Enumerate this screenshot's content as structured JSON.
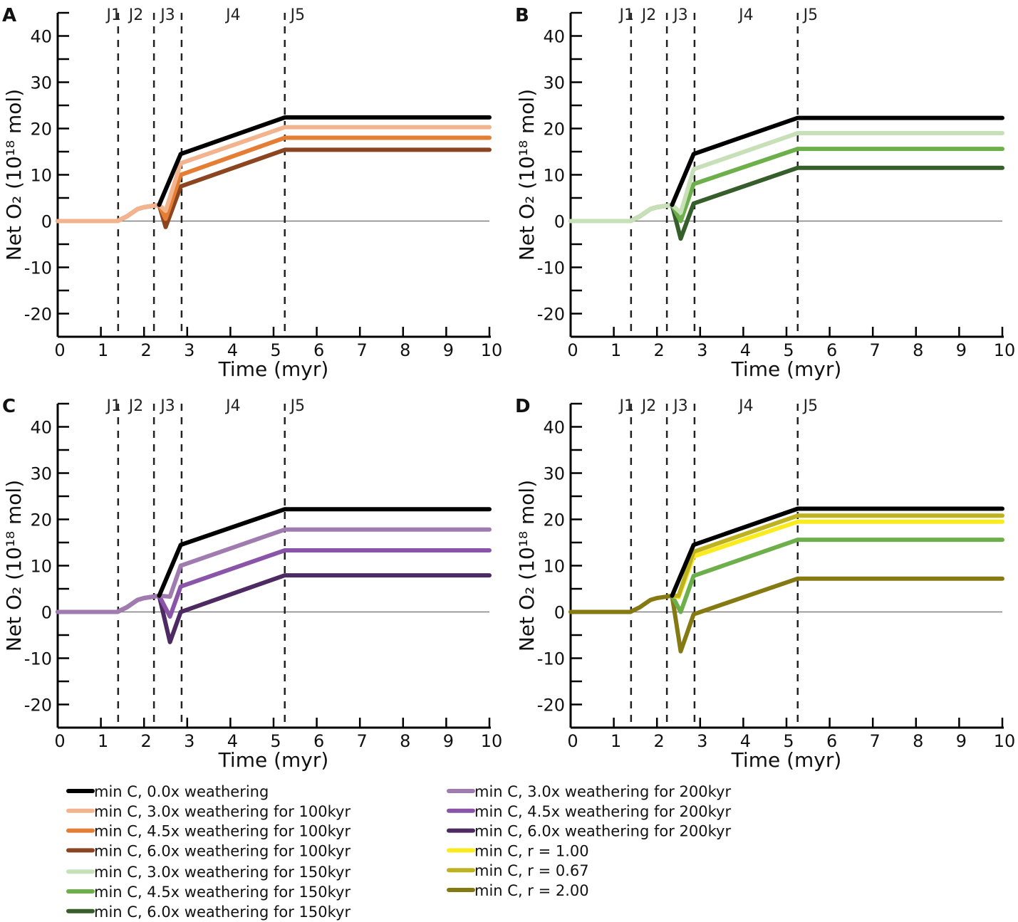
{
  "legend": [
    {
      "label": "min C, 0.0x weathering",
      "color": "#000000"
    },
    {
      "label": "min C, 3.0x weathering for 100kyr",
      "color": "#F2B48E"
    },
    {
      "label": "min C, 4.5x weathering for 100kyr",
      "color": "#E57E35"
    },
    {
      "label": "min C, 6.0x weathering for 100kyr",
      "color": "#8B4520"
    },
    {
      "label": "min C, 3.0x weathering for 150kyr",
      "color": "#C8E0B8"
    },
    {
      "label": "min C, 4.5x weathering for 150kyr",
      "color": "#6DAF4B"
    },
    {
      "label": "min C, 6.0x weathering for 150kyr",
      "color": "#355E2A"
    },
    {
      "label": "min C, 3.0x weathering for 200kyr",
      "color": "#A07BB0"
    },
    {
      "label": "min C, 4.5x weathering for 200kyr",
      "color": "#8A55A8"
    },
    {
      "label": "min C, 6.0x weathering for 200kyr",
      "color": "#4E2A62"
    },
    {
      "label": "min C, r = 1.00",
      "color": "#FAEB1E"
    },
    {
      "label": "min C, r = 0.67",
      "color": "#BEB21E"
    },
    {
      "label": "min C, r = 2.00",
      "color": "#857A12"
    }
  ],
  "chart_data": [
    {
      "panel": "A",
      "type": "line",
      "xlabel": "Time (myr)",
      "ylabel": "Net O₂ (10¹⁸ mol)",
      "xlim": [
        0,
        10
      ],
      "ylim": [
        -25,
        45
      ],
      "xticks": [
        "0",
        "1",
        "2",
        "3",
        "4",
        "5",
        "6",
        "7",
        "8",
        "9",
        "10"
      ],
      "yticks": [
        "-20",
        "-10",
        "0",
        "10",
        "20",
        "30",
        "40"
      ],
      "junctions": {
        "boundaries": [
          1.4,
          2.23,
          2.87,
          5.26
        ],
        "labels": [
          "J1",
          "J2",
          "J3",
          "J4",
          "J5"
        ]
      },
      "series": [
        {
          "name": "min C, 6.0x weathering for 100kyr",
          "color": "#8B4520",
          "x": [
            0,
            1.38,
            1.6,
            1.85,
            2.0,
            2.35,
            2.5,
            2.85,
            5.26,
            10
          ],
          "y": [
            0,
            0,
            1,
            2.6,
            3,
            3.5,
            -1.3,
            7.5,
            15.4,
            15.4
          ]
        },
        {
          "name": "min C, 4.5x weathering for 100kyr",
          "color": "#E57E35",
          "x": [
            0,
            1.38,
            1.6,
            1.85,
            2.0,
            2.35,
            2.5,
            2.85,
            5.26,
            10
          ],
          "y": [
            0,
            0,
            1,
            2.6,
            3,
            3.5,
            0.5,
            10,
            18,
            18
          ]
        },
        {
          "name": "min C, 3.0x weathering for 100kyr",
          "color": "#F2B48E",
          "x": [
            0,
            1.38,
            1.6,
            1.85,
            2.0,
            2.35,
            2.5,
            2.85,
            5.26,
            10
          ],
          "y": [
            0,
            0,
            1,
            2.6,
            3,
            3.5,
            2.2,
            12.5,
            20.3,
            20.3
          ]
        },
        {
          "name": "min C, 0.0x weathering",
          "color": "#000000",
          "x": [
            2.35,
            2.85,
            5.26,
            10
          ],
          "y": [
            3.5,
            14.5,
            22.4,
            22.4
          ]
        }
      ]
    },
    {
      "panel": "B",
      "type": "line",
      "xlabel": "Time (myr)",
      "ylabel": "Net O₂ (10¹⁸ mol)",
      "xlim": [
        0,
        10
      ],
      "ylim": [
        -25,
        45
      ],
      "xticks": [
        "0",
        "1",
        "2",
        "3",
        "4",
        "5",
        "6",
        "7",
        "8",
        "9",
        "10"
      ],
      "yticks": [
        "-20",
        "-10",
        "0",
        "10",
        "20",
        "30",
        "40"
      ],
      "junctions": {
        "boundaries": [
          1.4,
          2.23,
          2.87,
          5.26
        ],
        "labels": [
          "J1",
          "J2",
          "J3",
          "J4",
          "J5"
        ]
      },
      "series": [
        {
          "name": "min C, 6.0x weathering for 150kyr",
          "color": "#355E2A",
          "x": [
            0,
            1.38,
            1.6,
            1.85,
            2.0,
            2.35,
            2.55,
            2.85,
            5.26,
            10
          ],
          "y": [
            0,
            0,
            1,
            2.6,
            3,
            3.5,
            -3.8,
            3.8,
            11.5,
            11.5
          ]
        },
        {
          "name": "min C, 4.5x weathering for 150kyr",
          "color": "#6DAF4B",
          "x": [
            0,
            1.38,
            1.6,
            1.85,
            2.0,
            2.35,
            2.55,
            2.85,
            5.26,
            10
          ],
          "y": [
            0,
            0,
            1,
            2.6,
            3,
            3.5,
            0,
            8,
            15.6,
            15.6
          ]
        },
        {
          "name": "min C, 3.0x weathering for 150kyr",
          "color": "#C8E0B8",
          "x": [
            0,
            1.38,
            1.6,
            1.85,
            2.0,
            2.35,
            2.55,
            2.85,
            5.26,
            10
          ],
          "y": [
            0,
            0,
            1,
            2.6,
            3,
            3.5,
            1.8,
            11.2,
            19,
            19
          ]
        },
        {
          "name": "min C, 0.0x weathering",
          "color": "#000000",
          "x": [
            2.35,
            2.85,
            5.26,
            10
          ],
          "y": [
            3.5,
            14.5,
            22.3,
            22.3
          ]
        }
      ]
    },
    {
      "panel": "C",
      "type": "line",
      "xlabel": "Time (myr)",
      "ylabel": "Net O₂ (10¹⁸ mol)",
      "xlim": [
        0,
        10
      ],
      "ylim": [
        -25,
        45
      ],
      "xticks": [
        "0",
        "1",
        "2",
        "3",
        "4",
        "5",
        "6",
        "7",
        "8",
        "9",
        "10"
      ],
      "yticks": [
        "-20",
        "-10",
        "0",
        "10",
        "20",
        "30",
        "40"
      ],
      "junctions": {
        "boundaries": [
          1.4,
          2.23,
          2.87,
          5.26
        ],
        "labels": [
          "J1",
          "J2",
          "J3",
          "J4",
          "J5"
        ]
      },
      "series": [
        {
          "name": "min C, 6.0x weathering for 200kyr",
          "color": "#4E2A62",
          "x": [
            0,
            1.38,
            1.6,
            1.85,
            2.0,
            2.35,
            2.6,
            2.85,
            5.26,
            10
          ],
          "y": [
            0,
            0,
            1,
            2.6,
            3,
            3.5,
            -6.5,
            0,
            7.9,
            7.9
          ]
        },
        {
          "name": "min C, 4.5x weathering for 200kyr",
          "color": "#8A55A8",
          "x": [
            0,
            1.38,
            1.6,
            1.85,
            2.0,
            2.35,
            2.6,
            2.85,
            5.26,
            10
          ],
          "y": [
            0,
            0,
            1,
            2.6,
            3,
            3.5,
            -1,
            5.5,
            13.3,
            13.3
          ]
        },
        {
          "name": "min C, 3.0x weathering for 200kyr",
          "color": "#A07BB0",
          "x": [
            0,
            1.38,
            1.6,
            1.85,
            2.0,
            2.35,
            2.6,
            2.85,
            5.26,
            10
          ],
          "y": [
            0,
            0,
            1,
            2.6,
            3,
            3.5,
            3.3,
            10,
            17.8,
            17.8
          ]
        },
        {
          "name": "min C, 0.0x weathering",
          "color": "#000000",
          "x": [
            2.35,
            2.85,
            5.26,
            10
          ],
          "y": [
            3.5,
            14.5,
            22.2,
            22.2
          ]
        }
      ]
    },
    {
      "panel": "D",
      "type": "line",
      "xlabel": "Time (myr)",
      "ylabel": "Net O₂ (10¹⁸ mol)",
      "xlim": [
        0,
        10
      ],
      "ylim": [
        -25,
        45
      ],
      "xticks": [
        "0",
        "1",
        "2",
        "3",
        "4",
        "5",
        "6",
        "7",
        "8",
        "9",
        "10"
      ],
      "yticks": [
        "-20",
        "-10",
        "0",
        "10",
        "20",
        "30",
        "40"
      ],
      "junctions": {
        "boundaries": [
          1.4,
          2.23,
          2.87,
          5.26
        ],
        "labels": [
          "J1",
          "J2",
          "J3",
          "J4",
          "J5"
        ]
      },
      "series": [
        {
          "name": "min C, r = 2.00",
          "color": "#857A12",
          "x": [
            0,
            1.38,
            1.6,
            1.85,
            2.0,
            2.35,
            2.55,
            2.85,
            5.26,
            10
          ],
          "y": [
            0,
            0,
            1,
            2.6,
            3,
            3.5,
            -8.5,
            -0.5,
            7.2,
            7.2
          ]
        },
        {
          "name": "min C, 4.5x weathering for 150kyr",
          "color": "#6DAF4B",
          "x": [
            2.35,
            2.55,
            2.85,
            5.26,
            10
          ],
          "y": [
            3.5,
            0,
            7.8,
            15.6,
            15.6
          ]
        },
        {
          "name": "min C, r = 1.00",
          "color": "#FAEB1E",
          "x": [
            2.35,
            2.5,
            2.85,
            5.26,
            10
          ],
          "y": [
            3.5,
            3.2,
            12,
            19.5,
            19.5
          ]
        },
        {
          "name": "min C, r = 0.67",
          "color": "#BEB21E",
          "x": [
            2.35,
            2.5,
            2.85,
            5.26,
            10
          ],
          "y": [
            3.5,
            3.5,
            13,
            20.8,
            20.8
          ]
        },
        {
          "name": "min C, 0.0x weathering",
          "color": "#000000",
          "x": [
            2.35,
            2.85,
            5.26,
            10
          ],
          "y": [
            3.5,
            14.5,
            22.3,
            22.3
          ]
        }
      ]
    }
  ]
}
